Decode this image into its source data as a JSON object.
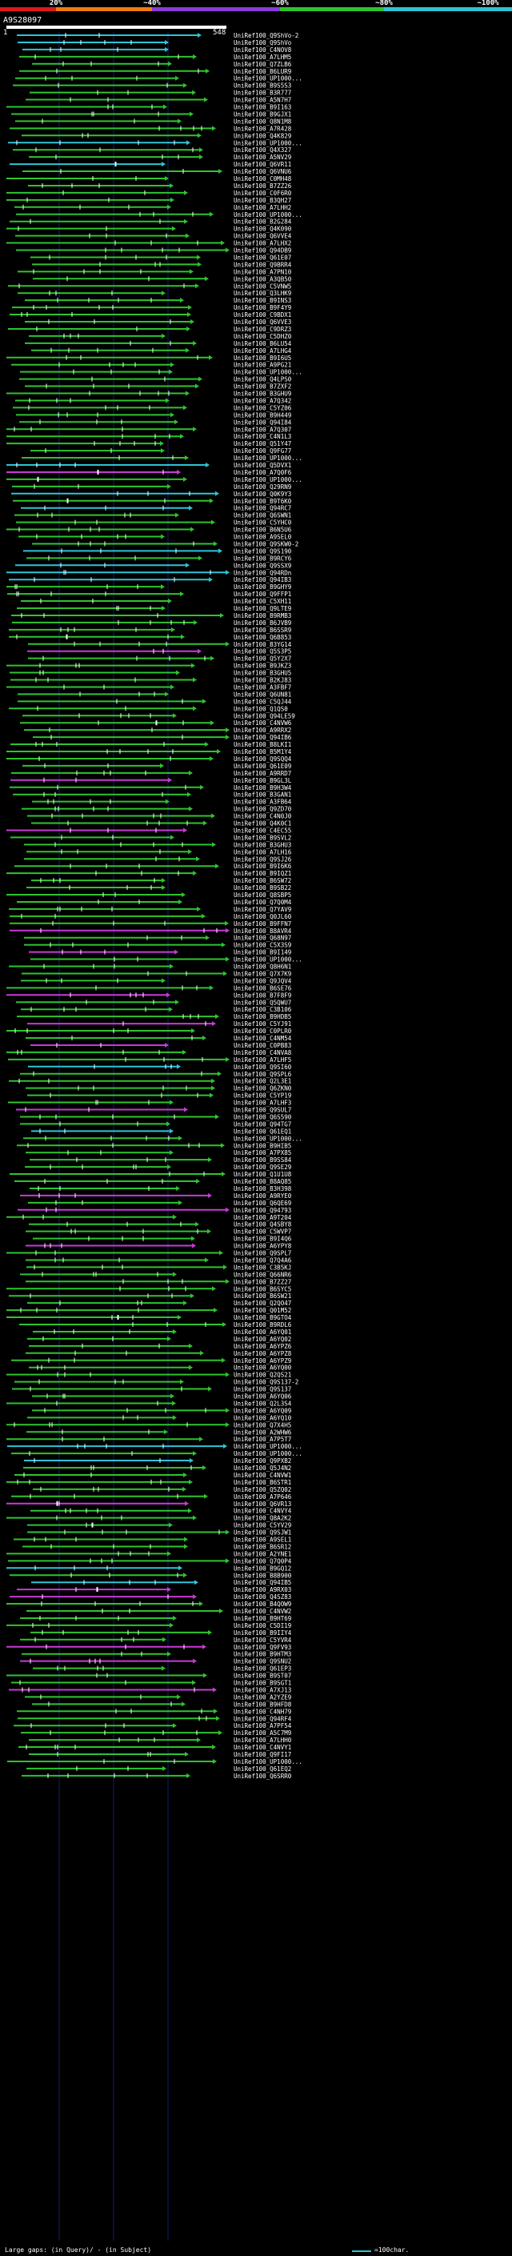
{
  "legend": {
    "labels": [
      "20%",
      "~40%",
      "~60%",
      "~80%",
      "~100%"
    ],
    "colors": [
      "#e01818",
      "#f07a10",
      "#8c3ad6",
      "#2ec42e",
      "#2ec4d6"
    ]
  },
  "query": {
    "title": "A9S28097",
    "start": "1",
    "end": "548"
  },
  "hits": [
    {
      "label": "UniRef100_Q9ShVo-2",
      "color": "#2ec4d6"
    },
    {
      "label": "UniRef100_Q9ShVo",
      "color": "#2ec4d6"
    },
    {
      "label": "UniRef100_C4NOV8",
      "color": "#2ec4d6"
    },
    {
      "label": "UniRef100_A7LHM5",
      "color": "#2ec42e"
    },
    {
      "label": "UniRef100_Q7ZLB6",
      "color": "#2ec42e"
    },
    {
      "label": "UniRef100_B6LUR9",
      "color": "#2ec42e"
    },
    {
      "label": "UniRef100_UP1000...",
      "color": "#2ec42e"
    },
    {
      "label": "UniRef100_B9S5S3",
      "color": "#2ec42e"
    },
    {
      "label": "UniRef100_B3R777",
      "color": "#2ec42e"
    },
    {
      "label": "UniRef100_A5N7H7",
      "color": "#2ec42e"
    },
    {
      "label": "UniRef100_B9I163",
      "color": "#2ec42e"
    },
    {
      "label": "UniRef100_B9GJX1",
      "color": "#2ec42e"
    },
    {
      "label": "UniRef100_Q8N1M8",
      "color": "#2ec42e"
    },
    {
      "label": "UniRef100_A7R428",
      "color": "#2ec42e"
    },
    {
      "label": "UniRef100_Q4K829",
      "color": "#2ec42e"
    },
    {
      "label": "UniRef100_UP1000...",
      "color": "#2ec4d6"
    },
    {
      "label": "UniRef100_Q4X327",
      "color": "#2ec42e"
    },
    {
      "label": "UniRef100_A5NV29",
      "color": "#2ec42e"
    },
    {
      "label": "UniRef100_Q6VR11",
      "color": "#2ec4d6"
    },
    {
      "label": "UniRef100_Q6VNU6",
      "color": "#2ec42e"
    },
    {
      "label": "UniRef100_C0MH48",
      "color": "#2ec42e"
    },
    {
      "label": "UniRef100_B7ZZ26",
      "color": "#2ec42e"
    },
    {
      "label": "UniRef100_C0F6R0",
      "color": "#2ec42e"
    },
    {
      "label": "UniRef100_B3QH27",
      "color": "#2ec42e"
    },
    {
      "label": "UniRef100_A7LHH2",
      "color": "#2ec42e"
    },
    {
      "label": "UniRef100_UP1000...",
      "color": "#2ec42e"
    },
    {
      "label": "UniRef100_B2G284",
      "color": "#2ec42e"
    },
    {
      "label": "UniRef100_Q4K090",
      "color": "#2ec42e"
    },
    {
      "label": "UniRef100_Q6VVE4",
      "color": "#2ec42e"
    },
    {
      "label": "UniRef100_A7LHX2",
      "color": "#2ec42e"
    },
    {
      "label": "UniRef100_Q94DB9",
      "color": "#2ec42e"
    },
    {
      "label": "UniRef100_Q61E07",
      "color": "#2ec42e"
    },
    {
      "label": "UniRef100_Q9BRR4",
      "color": "#2ec42e"
    },
    {
      "label": "UniRef100_A7PN10",
      "color": "#2ec42e"
    },
    {
      "label": "UniRef100_A3QB50",
      "color": "#2ec42e"
    },
    {
      "label": "UniRef100_C5VNW5",
      "color": "#2ec42e"
    },
    {
      "label": "UniRef100_Q3LHK9",
      "color": "#2ec42e"
    },
    {
      "label": "UniRef100_B9INS3",
      "color": "#2ec42e"
    },
    {
      "label": "UniRef100_B9F4Y9",
      "color": "#2ec42e"
    },
    {
      "label": "UniRef100_C9BDX1",
      "color": "#2ec42e"
    },
    {
      "label": "UniRef100_Q6VVE3",
      "color": "#2ec42e"
    },
    {
      "label": "UniRef100_C9DRZ3",
      "color": "#2ec42e"
    },
    {
      "label": "UniRef100_C5DHZ0",
      "color": "#2ec42e"
    },
    {
      "label": "UniRef100_B6LU54",
      "color": "#2ec42e"
    },
    {
      "label": "UniRef100_A7LHG4",
      "color": "#2ec42e"
    },
    {
      "label": "UniRef100_B9I6U5",
      "color": "#2ec42e"
    },
    {
      "label": "UniRef100_A9PG21",
      "color": "#2ec42e"
    },
    {
      "label": "UniRef100_UP1000...",
      "color": "#2ec42e"
    },
    {
      "label": "UniRef100_Q4LPS0",
      "color": "#2ec42e"
    },
    {
      "label": "UniRef100_B7ZXF2",
      "color": "#2ec42e"
    },
    {
      "label": "UniRef100_B3GHU9",
      "color": "#2ec42e"
    },
    {
      "label": "UniRef100_A7Q342",
      "color": "#2ec42e"
    },
    {
      "label": "UniRef100_C5YZ06",
      "color": "#2ec42e"
    },
    {
      "label": "UniRef100_B9H449",
      "color": "#2ec42e"
    },
    {
      "label": "UniRef100_Q94I84",
      "color": "#2ec42e"
    },
    {
      "label": "UniRef100_A7Q307",
      "color": "#2ec42e"
    },
    {
      "label": "UniRef100_C4N1L3",
      "color": "#2ec42e"
    },
    {
      "label": "UniRef100_Q51Y47",
      "color": "#2ec42e"
    },
    {
      "label": "UniRef100_Q9FG77",
      "color": "#2ec42e"
    },
    {
      "label": "UniRef100_UP1000...",
      "color": "#2ec42e"
    },
    {
      "label": "UniRef100_Q5DVX1",
      "color": "#2ec4d6"
    },
    {
      "label": "UniRef100_A7Q0F6",
      "color": "#c83ad6"
    },
    {
      "label": "UniRef100_UP1000...",
      "color": "#2ec42e"
    },
    {
      "label": "UniRef100_Q29RN9",
      "color": "#2ec42e"
    },
    {
      "label": "UniRef100_Q0K9Y3",
      "color": "#2ec4d6"
    },
    {
      "label": "UniRef100_B9T6K0",
      "color": "#2ec42e"
    },
    {
      "label": "UniRef100_Q94RC7",
      "color": "#2ec4d6"
    },
    {
      "label": "UniRef100_Q6SWN1",
      "color": "#2ec42e"
    },
    {
      "label": "UniRef100_C5YHC0",
      "color": "#2ec42e"
    },
    {
      "label": "UniRef100_B6N5U6",
      "color": "#2ec42e"
    },
    {
      "label": "UniRef100_A9SEL0",
      "color": "#2ec42e"
    },
    {
      "label": "UniRef100_Q9SKW0-2",
      "color": "#2ec42e"
    },
    {
      "label": "UniRef100_Q9S190",
      "color": "#2ec4d6"
    },
    {
      "label": "UniRef100_B9RCY6",
      "color": "#2ec42e"
    },
    {
      "label": "UniRef100_Q9SSX9",
      "color": "#2ec4d6"
    },
    {
      "label": "UniRef100_Q94RDn",
      "color": "#2ec4d6"
    },
    {
      "label": "UniRef100_Q94IB3",
      "color": "#2ec4d6"
    },
    {
      "label": "UniRef100_B9GHY9",
      "color": "#2ec42e"
    },
    {
      "label": "UniRef100_Q9FFP1",
      "color": "#2ec42e"
    },
    {
      "label": "UniRef100_C5XH11",
      "color": "#2ec42e"
    },
    {
      "label": "UniRef100_Q9LTE9",
      "color": "#2ec42e"
    },
    {
      "label": "UniRef100_B9RMB3",
      "color": "#2ec42e"
    },
    {
      "label": "UniRef100_B6JVB9",
      "color": "#2ec42e"
    },
    {
      "label": "UniRef100_B6SSR9",
      "color": "#2ec42e"
    },
    {
      "label": "UniRef100_Q6B853",
      "color": "#2ec42e"
    },
    {
      "label": "UniRef100_B3YG14",
      "color": "#2ec42e"
    },
    {
      "label": "UniRef100_Q5S3P5",
      "color": "#c83ad6"
    },
    {
      "label": "UniRef100_Q5Y2X7",
      "color": "#2ec42e"
    },
    {
      "label": "UniRef100_B9JKZ3",
      "color": "#2ec42e"
    },
    {
      "label": "UniRef100_B3GHU5",
      "color": "#2ec42e"
    },
    {
      "label": "UniRef100_B2KJ83",
      "color": "#2ec42e"
    },
    {
      "label": "UniRef100_A3FBF7",
      "color": "#2ec42e"
    },
    {
      "label": "UniRef100_Q6UN81",
      "color": "#2ec42e"
    },
    {
      "label": "UniRef100_C5QJ44",
      "color": "#2ec42e"
    },
    {
      "label": "UniRef100_Q1QS0",
      "color": "#2ec42e"
    },
    {
      "label": "UniRef100_Q94LE59",
      "color": "#2ec42e"
    },
    {
      "label": "UniRef100_C4NVW6",
      "color": "#2ec42e"
    },
    {
      "label": "UniRef100_A9RRX2",
      "color": "#2ec42e"
    },
    {
      "label": "UniRef100_Q94IB6",
      "color": "#2ec42e"
    },
    {
      "label": "UniRef100_B8LKI1",
      "color": "#2ec42e"
    },
    {
      "label": "UniRef100_B5M1Y4",
      "color": "#2ec42e"
    },
    {
      "label": "UniRef100_Q9SQQ4",
      "color": "#2ec42e"
    },
    {
      "label": "UniRef100_Q61E09",
      "color": "#2ec42e"
    },
    {
      "label": "UniRef100_A9RRD7",
      "color": "#2ec42e"
    },
    {
      "label": "UniRef100_B9GL3L",
      "color": "#c83ad6"
    },
    {
      "label": "UniRef100_B9H3W4",
      "color": "#2ec42e"
    },
    {
      "label": "UniRef100_B3GAN1",
      "color": "#2ec42e"
    },
    {
      "label": "UniRef100_A3FB64",
      "color": "#2ec42e"
    },
    {
      "label": "UniRef100_Q9ZD70",
      "color": "#2ec42e"
    },
    {
      "label": "UniRef100_C4N0J0",
      "color": "#2ec42e"
    },
    {
      "label": "UniRef100_Q4K0C1",
      "color": "#2ec42e"
    },
    {
      "label": "UniRef100_C4EC55",
      "color": "#c83ad6"
    },
    {
      "label": "UniRef100_B9SVL2",
      "color": "#2ec42e"
    },
    {
      "label": "UniRef100_B3GHU3",
      "color": "#2ec42e"
    },
    {
      "label": "UniRef100_A7LH16",
      "color": "#2ec42e"
    },
    {
      "label": "UniRef100_Q9SJ26",
      "color": "#2ec42e"
    },
    {
      "label": "UniRef100_B9I6K6",
      "color": "#2ec42e"
    },
    {
      "label": "UniRef100_B9IQZ1",
      "color": "#2ec42e"
    },
    {
      "label": "UniRef100_B6SW72",
      "color": "#2ec42e"
    },
    {
      "label": "UniRef100_B9SB22",
      "color": "#2ec42e"
    },
    {
      "label": "UniRef100_Q8SBP5",
      "color": "#2ec42e"
    },
    {
      "label": "UniRef100_Q7Q0M4",
      "color": "#2ec42e"
    },
    {
      "label": "UniRef100_Q7YAV9",
      "color": "#2ec42e"
    },
    {
      "label": "UniRef100_Q0JL60",
      "color": "#2ec42e"
    },
    {
      "label": "UniRef100_B9FFN7",
      "color": "#2ec42e"
    },
    {
      "label": "UniRef100_B8AVR4",
      "color": "#c83ad6"
    },
    {
      "label": "UniRef100_Q68N97",
      "color": "#2ec42e"
    },
    {
      "label": "UniRef100_C5X3S9",
      "color": "#2ec42e"
    },
    {
      "label": "UniRef100_B9I149",
      "color": "#c83ad6"
    },
    {
      "label": "UniRef100_UP1000...",
      "color": "#2ec42e"
    },
    {
      "label": "UniRef100_Q8H6N1",
      "color": "#2ec42e"
    },
    {
      "label": "UniRef100_Q7X7K9",
      "color": "#2ec42e"
    },
    {
      "label": "UniRef100_Q9JQV4",
      "color": "#2ec42e"
    },
    {
      "label": "UniRef100_B6SE76",
      "color": "#2ec42e"
    },
    {
      "label": "UniRef100_B7F8F9",
      "color": "#c83ad6"
    },
    {
      "label": "UniRef100_Q5QWU7",
      "color": "#2ec42e"
    },
    {
      "label": "UniRef100_C3B106",
      "color": "#2ec42e"
    },
    {
      "label": "UniRef100_B9HDB5",
      "color": "#2ec42e"
    },
    {
      "label": "UniRef100_C5YJ91",
      "color": "#c83ad6"
    },
    {
      "label": "UniRef100_C0PLR0",
      "color": "#2ec42e"
    },
    {
      "label": "UniRef100_C4NM54",
      "color": "#2ec42e"
    },
    {
      "label": "UniRef100_C0PB83",
      "color": "#c83ad6"
    },
    {
      "label": "UniRef100_C4NVA8",
      "color": "#2ec42e"
    },
    {
      "label": "UniRef100_A7LHF5",
      "color": "#2ec42e"
    },
    {
      "label": "UniRef100_Q9SI60",
      "color": "#2ec4d6"
    },
    {
      "label": "UniRef100_Q9SPL6",
      "color": "#2ec42e"
    },
    {
      "label": "UniRef100_Q2L3E1",
      "color": "#2ec42e"
    },
    {
      "label": "UniRef100_Q6ZKN0",
      "color": "#2ec42e"
    },
    {
      "label": "UniRef100_C5YP19",
      "color": "#2ec42e"
    },
    {
      "label": "UniRef100_A7LHF3",
      "color": "#2ec42e"
    },
    {
      "label": "UniRef100_Q9SUL7",
      "color": "#c83ad6"
    },
    {
      "label": "UniRef100_Q6S590",
      "color": "#2ec42e"
    },
    {
      "label": "UniRef100_Q94TG7",
      "color": "#2ec42e"
    },
    {
      "label": "UniRef100_Q61EQ1",
      "color": "#2ec4d6"
    },
    {
      "label": "UniRef100_UP1000...",
      "color": "#2ec42e"
    },
    {
      "label": "UniRef100_B9HIB5",
      "color": "#2ec42e"
    },
    {
      "label": "UniRef100_A7PX85",
      "color": "#2ec42e"
    },
    {
      "label": "UniRef100_B9SS84",
      "color": "#2ec42e"
    },
    {
      "label": "UniRef100_Q9SE29",
      "color": "#2ec42e"
    },
    {
      "label": "UniRef100_Q1U1U8",
      "color": "#2ec42e"
    },
    {
      "label": "UniRef100_B8AQ85",
      "color": "#2ec42e"
    },
    {
      "label": "UniRef100_B3H398",
      "color": "#2ec42e"
    },
    {
      "label": "UniRef100_A9RYE0",
      "color": "#c83ad6"
    },
    {
      "label": "UniRef100_Q6QE69",
      "color": "#2ec42e"
    },
    {
      "label": "UniRef100_Q94793",
      "color": "#c83ad6"
    },
    {
      "label": "UniRef100_A9T204",
      "color": "#2ec42e"
    },
    {
      "label": "UniRef100_Q4SBY8",
      "color": "#2ec42e"
    },
    {
      "label": "UniRef100_C5WVP7",
      "color": "#2ec42e"
    },
    {
      "label": "UniRef100_B9I4Q6",
      "color": "#2ec42e"
    },
    {
      "label": "UniRef100_A6YPY8",
      "color": "#c83ad6"
    },
    {
      "label": "UniRef100_Q9SPL7",
      "color": "#2ec42e"
    },
    {
      "label": "UniRef100_Q7Q4A6",
      "color": "#2ec42e"
    },
    {
      "label": "UniRef100_C3B5KJ",
      "color": "#2ec42e"
    },
    {
      "label": "UniRef100_Q66NR6",
      "color": "#2ec42e"
    },
    {
      "label": "UniRef100_B7ZZ27",
      "color": "#2ec42e"
    },
    {
      "label": "UniRef100_B6SYC5",
      "color": "#2ec42e"
    },
    {
      "label": "UniRef100_B6SW21",
      "color": "#2ec42e"
    },
    {
      "label": "UniRef100_Q2QO47",
      "color": "#2ec42e"
    },
    {
      "label": "UniRef100_Q01M52",
      "color": "#2ec42e"
    },
    {
      "label": "UniRef100_B9GTO4",
      "color": "#2ec42e"
    },
    {
      "label": "UniRef100_B9RDL6",
      "color": "#2ec42e"
    },
    {
      "label": "UniRef100_A6YQ01",
      "color": "#2ec42e"
    },
    {
      "label": "UniRef100_A6YQ02",
      "color": "#2ec42e"
    },
    {
      "label": "UniRef100_A6YPZ6",
      "color": "#2ec42e"
    },
    {
      "label": "UniRef100_A6YPZ8",
      "color": "#2ec42e"
    },
    {
      "label": "UniRef100_A6YPZ9",
      "color": "#2ec42e"
    },
    {
      "label": "UniRef100_A6YQ00",
      "color": "#2ec42e"
    },
    {
      "label": "UniRef100_Q2QS21",
      "color": "#2ec42e"
    },
    {
      "label": "UniRef100_Q9S137-2",
      "color": "#2ec42e"
    },
    {
      "label": "UniRef100_Q9S137",
      "color": "#2ec42e"
    },
    {
      "label": "UniRef100_A6YQ06",
      "color": "#2ec42e"
    },
    {
      "label": "UniRef100_Q2L3S4",
      "color": "#2ec42e"
    },
    {
      "label": "UniRef100_A6YQ09",
      "color": "#2ec42e"
    },
    {
      "label": "UniRef100_A6YQ10",
      "color": "#2ec42e"
    },
    {
      "label": "UniRef100_Q7X4H5",
      "color": "#2ec42e"
    },
    {
      "label": "UniRef100_A2WHW6",
      "color": "#2ec42e"
    },
    {
      "label": "UniRef100_A7P5T7",
      "color": "#2ec42e"
    },
    {
      "label": "UniRef100_UP1000...",
      "color": "#2ec4d6"
    },
    {
      "label": "UniRef100_UP1000...",
      "color": "#2ec42e"
    },
    {
      "label": "UniRef100_Q9PXB2",
      "color": "#2ec4d6"
    },
    {
      "label": "UniRef100_Q5J4N2",
      "color": "#2ec42e"
    },
    {
      "label": "UniRef100_C4NVW1",
      "color": "#2ec42e"
    },
    {
      "label": "UniRef100_B6STR1",
      "color": "#2ec42e"
    },
    {
      "label": "UniRef100_Q5ZQ02",
      "color": "#2ec42e"
    },
    {
      "label": "UniRef100_A7P646",
      "color": "#2ec42e"
    },
    {
      "label": "UniRef100_Q6VR13",
      "color": "#c83ad6"
    },
    {
      "label": "UniRef100_C4NVY4",
      "color": "#2ec42e"
    },
    {
      "label": "UniRef100_Q8A2K2",
      "color": "#2ec42e"
    },
    {
      "label": "UniRef100_C5YV29",
      "color": "#2ec42e"
    },
    {
      "label": "UniRef100_Q9SJW1",
      "color": "#2ec42e"
    },
    {
      "label": "UniRef100_A9SEL1",
      "color": "#2ec42e"
    },
    {
      "label": "UniRef100_B6SR12",
      "color": "#2ec42e"
    },
    {
      "label": "UniRef100_A2YNE1",
      "color": "#2ec42e"
    },
    {
      "label": "UniRef100_Q7Q0P4",
      "color": "#2ec42e"
    },
    {
      "label": "UniRef100_B9GQ12",
      "color": "#2ec4d6"
    },
    {
      "label": "UniRef100_B8B900",
      "color": "#2ec42e"
    },
    {
      "label": "UniRef100_Q94IB5",
      "color": "#2ec4d6"
    },
    {
      "label": "UniRef100_A9RX03",
      "color": "#c83ad6"
    },
    {
      "label": "UniRef100_Q4SZ83",
      "color": "#c83ad6"
    },
    {
      "label": "UniRef100_B4QOW9",
      "color": "#2ec42e"
    },
    {
      "label": "UniRef100_C4NVW2",
      "color": "#2ec42e"
    },
    {
      "label": "UniRef100_B9HT69",
      "color": "#2ec42e"
    },
    {
      "label": "UniRef100_C5DI19",
      "color": "#2ec42e"
    },
    {
      "label": "UniRef100_B9IIY4",
      "color": "#2ec42e"
    },
    {
      "label": "UniRef100_C5YVR4",
      "color": "#2ec42e"
    },
    {
      "label": "UniRef100_Q9FV93",
      "color": "#c83ad6"
    },
    {
      "label": "UniRef100_B9HTM3",
      "color": "#2ec42e"
    },
    {
      "label": "UniRef100_Q9SNU2",
      "color": "#c83ad6"
    },
    {
      "label": "UniRef100_Q61EP3",
      "color": "#2ec42e"
    },
    {
      "label": "UniRef100_B9ST07",
      "color": "#2ec42e"
    },
    {
      "label": "UniRef100_B9SGT1",
      "color": "#2ec42e"
    },
    {
      "label": "UniRef100_A7XJ13",
      "color": "#c83ad6"
    },
    {
      "label": "UniRef100_A2YZE9",
      "color": "#2ec42e"
    },
    {
      "label": "UniRef100_B9HFD8",
      "color": "#2ec42e"
    },
    {
      "label": "UniRef100_C4NH79",
      "color": "#2ec42e"
    },
    {
      "label": "UniRef100_Q94RF4",
      "color": "#2ec42e"
    },
    {
      "label": "UniRef100_A7PF54",
      "color": "#2ec42e"
    },
    {
      "label": "UniRef100_A5C7M9",
      "color": "#2ec42e"
    },
    {
      "label": "UniRef100_A7LHH0",
      "color": "#2ec42e"
    },
    {
      "label": "UniRef100_C4NVY1",
      "color": "#2ec42e"
    },
    {
      "label": "UniRef100_Q9FI17",
      "color": "#2ec42e"
    },
    {
      "label": "UniRef100_UP1000...",
      "color": "#2ec42e"
    },
    {
      "label": "UniRef100_Q61EQ2",
      "color": "#2ec42e"
    },
    {
      "label": "UniRef100_Q6SRR0",
      "color": "#2ec42e"
    }
  ],
  "footer": {
    "gaps_text": "Large gaps: (in Query)/ - (in Subject)",
    "scale_text": "=100char."
  }
}
